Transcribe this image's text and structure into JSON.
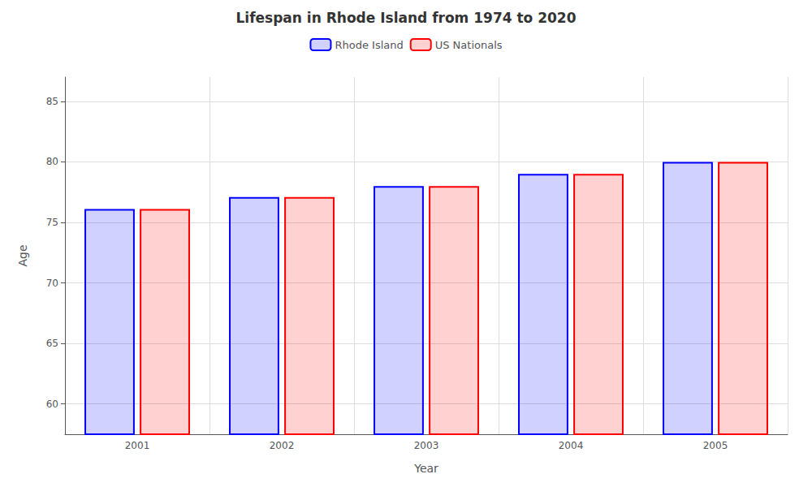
{
  "chart_data": {
    "type": "bar",
    "title": "Lifespan in Rhode Island from 1974 to 2020",
    "xlabel": "Year",
    "ylabel": "Age",
    "categories": [
      "2001",
      "2002",
      "2003",
      "2004",
      "2005"
    ],
    "series": [
      {
        "name": "Rhode Island",
        "color": "#0000ff",
        "values": [
          76.1,
          77.1,
          78.0,
          79.0,
          80.0
        ]
      },
      {
        "name": "US Nationals",
        "color": "#ff0000",
        "values": [
          76.1,
          77.1,
          78.0,
          79.0,
          80.0
        ]
      }
    ],
    "ylim": [
      57.5,
      87
    ],
    "yticks": [
      60,
      65,
      70,
      75,
      80,
      85
    ],
    "grid": true,
    "legend": "upper center"
  }
}
